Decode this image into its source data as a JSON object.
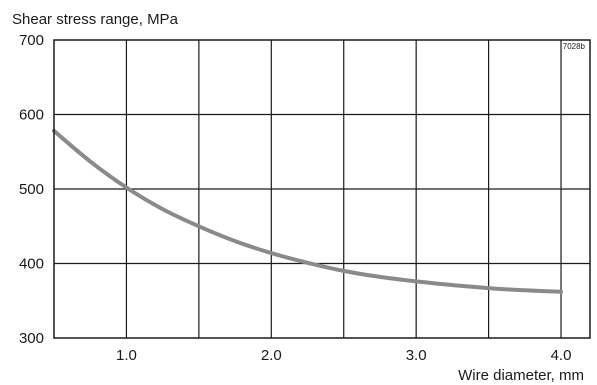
{
  "chart_data": {
    "type": "line",
    "title": "",
    "ylabel": "Shear stress range, MPa",
    "xlabel": "Wire diameter, mm",
    "code": "7028b",
    "xlim": [
      0.5,
      4.2
    ],
    "ylim": [
      300,
      700
    ],
    "grid": true,
    "x_grid_values": [
      0.5,
      1.0,
      1.5,
      2.0,
      2.5,
      3.0,
      3.5,
      4.0
    ],
    "xticks": [
      {
        "value": 1.0,
        "label": "1.0"
      },
      {
        "value": 2.0,
        "label": "2.0"
      },
      {
        "value": 3.0,
        "label": "3.0"
      },
      {
        "value": 4.0,
        "label": "4.0"
      }
    ],
    "yticks": [
      {
        "value": 300,
        "label": "300"
      },
      {
        "value": 400,
        "label": "400"
      },
      {
        "value": 500,
        "label": "500"
      },
      {
        "value": 600,
        "label": "600"
      },
      {
        "value": 700,
        "label": "700"
      }
    ],
    "series": [
      {
        "color": "#8a8a8a",
        "x": [
          0.5,
          0.75,
          1.0,
          1.25,
          1.5,
          1.75,
          2.0,
          2.25,
          2.5,
          2.75,
          3.0,
          3.25,
          3.5,
          3.75,
          4.0
        ],
        "y": [
          578,
          537,
          502,
          473,
          450,
          430,
          414,
          401,
          390,
          382,
          376,
          371,
          367,
          364,
          362
        ]
      }
    ]
  }
}
